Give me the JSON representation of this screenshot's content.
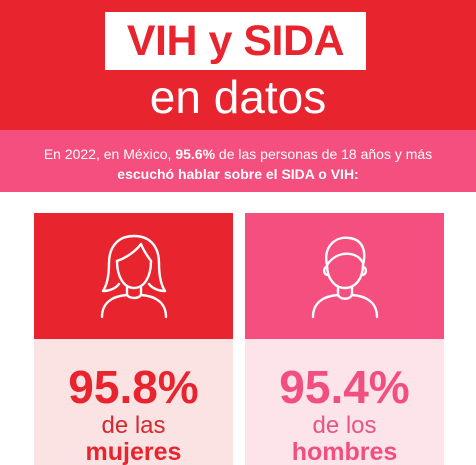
{
  "header": {
    "title": "VIH y SIDA",
    "subtitle": "en datos"
  },
  "intro": {
    "line1_prefix": "En 2022, en México, ",
    "line1_highlight": "95.6%",
    "line1_suffix": " de las personas de 18 años y más",
    "line2": "escuchó hablar sobre el SIDA o VIH:"
  },
  "cards": {
    "women": {
      "icon": "woman-icon",
      "percent": "95.8%",
      "of_label": "de las",
      "group_label": "mujeres"
    },
    "men": {
      "icon": "man-icon",
      "percent": "95.4%",
      "of_label": "de los",
      "group_label": "hombres"
    }
  },
  "colors": {
    "red": "#e8242f",
    "pink": "#f44f7e",
    "light_red": "#fbe2e3",
    "light_pink": "#fde3ea"
  }
}
